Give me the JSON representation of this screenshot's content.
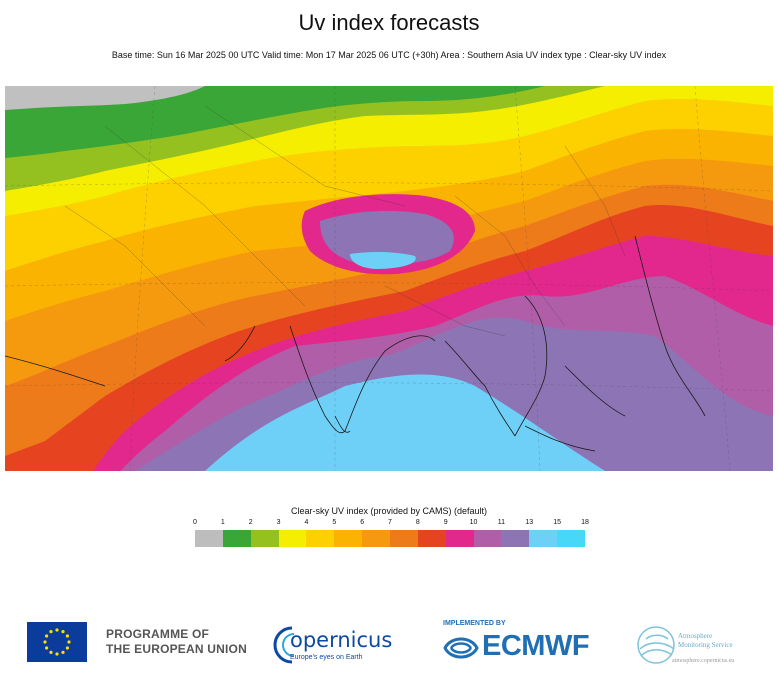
{
  "header": {
    "title": "Uv index forecasts",
    "subtitle": "Base time: Sun 16 Mar 2025 00 UTC Valid time: Mon 17 Mar 2025 06 UTC (+30h) Area : Southern Asia UV index type : Clear-sky UV index"
  },
  "map": {
    "region": "Southern Asia",
    "layers": [
      {
        "label": "0",
        "color": "#c0c0c0"
      },
      {
        "label": "1",
        "color": "#3aa637"
      },
      {
        "label": "2",
        "color": "#94c11f"
      },
      {
        "label": "3",
        "color": "#f5ee00"
      },
      {
        "label": "4",
        "color": "#fdd000"
      },
      {
        "label": "5",
        "color": "#f9b300"
      },
      {
        "label": "6",
        "color": "#f59a0e"
      },
      {
        "label": "7",
        "color": "#ee7b1a"
      },
      {
        "label": "8",
        "color": "#e64421"
      },
      {
        "label": "9",
        "color": "#e2278d"
      },
      {
        "label": "10",
        "color": "#b15ea8"
      },
      {
        "label": "11",
        "color": "#8d74b4"
      },
      {
        "label": "13",
        "color": "#6fd0f7"
      },
      {
        "label": "15",
        "color": "#47d8f8"
      }
    ]
  },
  "legend": {
    "title": "Clear-sky UV index (provided by CAMS) (default)",
    "ticks": [
      "0",
      "1",
      "2",
      "3",
      "4",
      "5",
      "6",
      "7",
      "8",
      "9",
      "10",
      "11",
      "13",
      "15",
      "18"
    ],
    "colors": [
      "#bdbdbd",
      "#3aa637",
      "#94c11f",
      "#f5ee00",
      "#fdd000",
      "#f9b300",
      "#f59a0e",
      "#ee7b1a",
      "#e64421",
      "#e2278d",
      "#b15ea8",
      "#8d74b4",
      "#6fd0f7",
      "#47d8f8"
    ]
  },
  "footer": {
    "eu_line1": "PROGRAMME OF",
    "eu_line2": "THE EUROPEAN UNION",
    "copernicus_name": "opernicus",
    "copernicus_tagline": "Europe's eyes on Earth",
    "implemented_by": "IMPLEMENTED BY",
    "ecmwf_name": "ECMWF",
    "cams_line1": "Atmosphere",
    "cams_line2": "Monitoring Service",
    "cams_url": "atmosphere.copernicus.eu"
  }
}
